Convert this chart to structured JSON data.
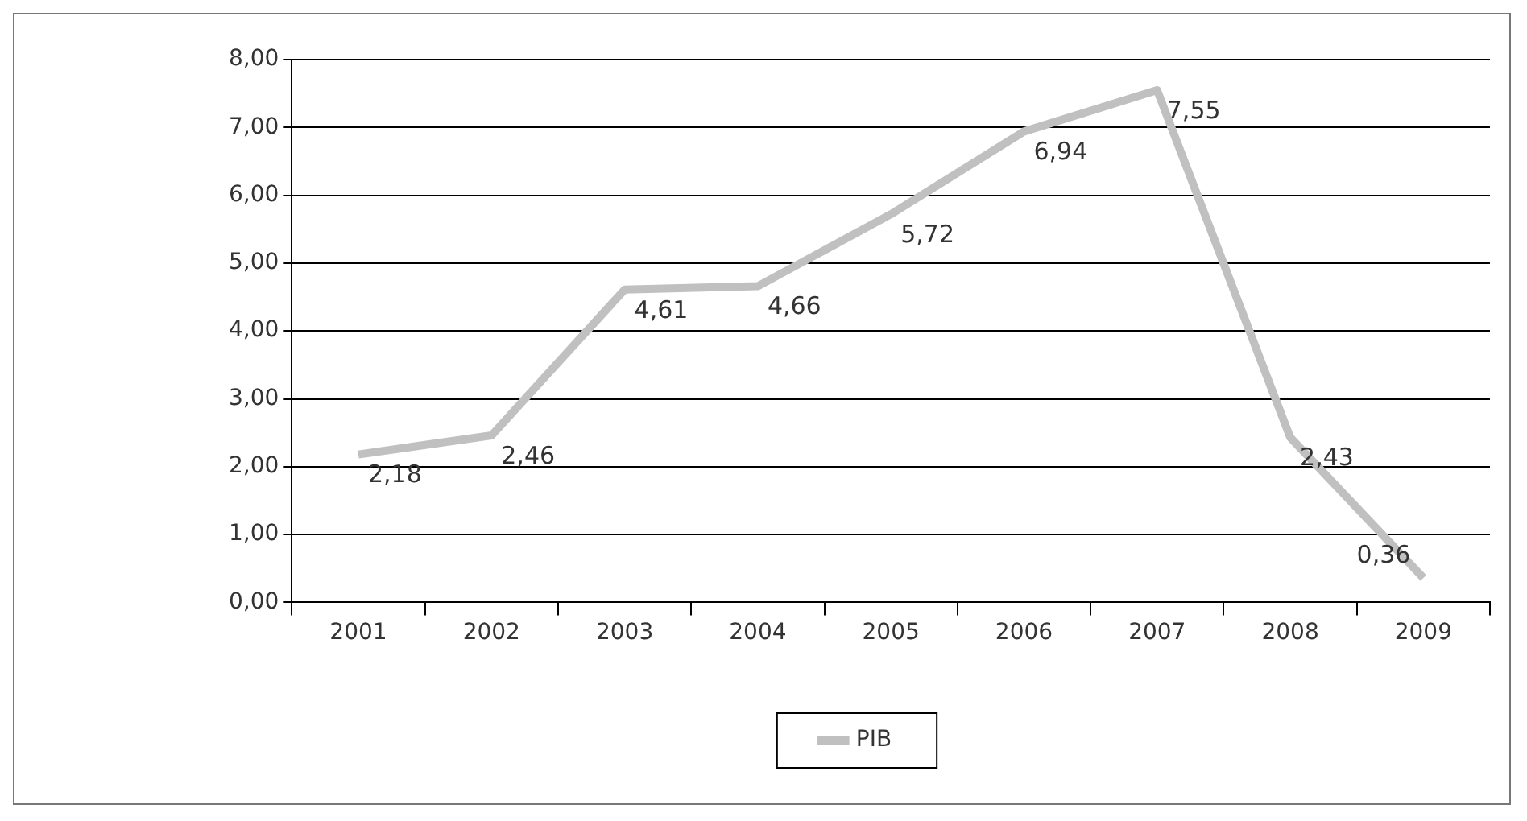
{
  "chart_data": {
    "type": "line",
    "categories": [
      "2001",
      "2002",
      "2003",
      "2004",
      "2005",
      "2006",
      "2007",
      "2008",
      "2009"
    ],
    "series": [
      {
        "name": "PIB",
        "color": "#c0c0c0",
        "values": [
          2.18,
          2.46,
          4.61,
          4.66,
          5.72,
          6.94,
          7.55,
          2.43,
          0.36
        ],
        "value_labels": [
          "2,18",
          "2,46",
          "4,61",
          "4,66",
          "5,72",
          "6,94",
          "7,55",
          "2,43",
          "0,36"
        ]
      }
    ],
    "ylim": [
      0,
      8
    ],
    "yticks": [
      {
        "value": 0,
        "label": "0,00"
      },
      {
        "value": 1,
        "label": "1,00"
      },
      {
        "value": 2,
        "label": "2,00"
      },
      {
        "value": 3,
        "label": "3,00"
      },
      {
        "value": 4,
        "label": "4,00"
      },
      {
        "value": 5,
        "label": "5,00"
      },
      {
        "value": 6,
        "label": "6,00"
      },
      {
        "value": 7,
        "label": "7,00"
      },
      {
        "value": 8,
        "label": "8,00"
      }
    ],
    "grid": "y",
    "legend": "bottom",
    "marker": "none",
    "line_style": "solid"
  }
}
